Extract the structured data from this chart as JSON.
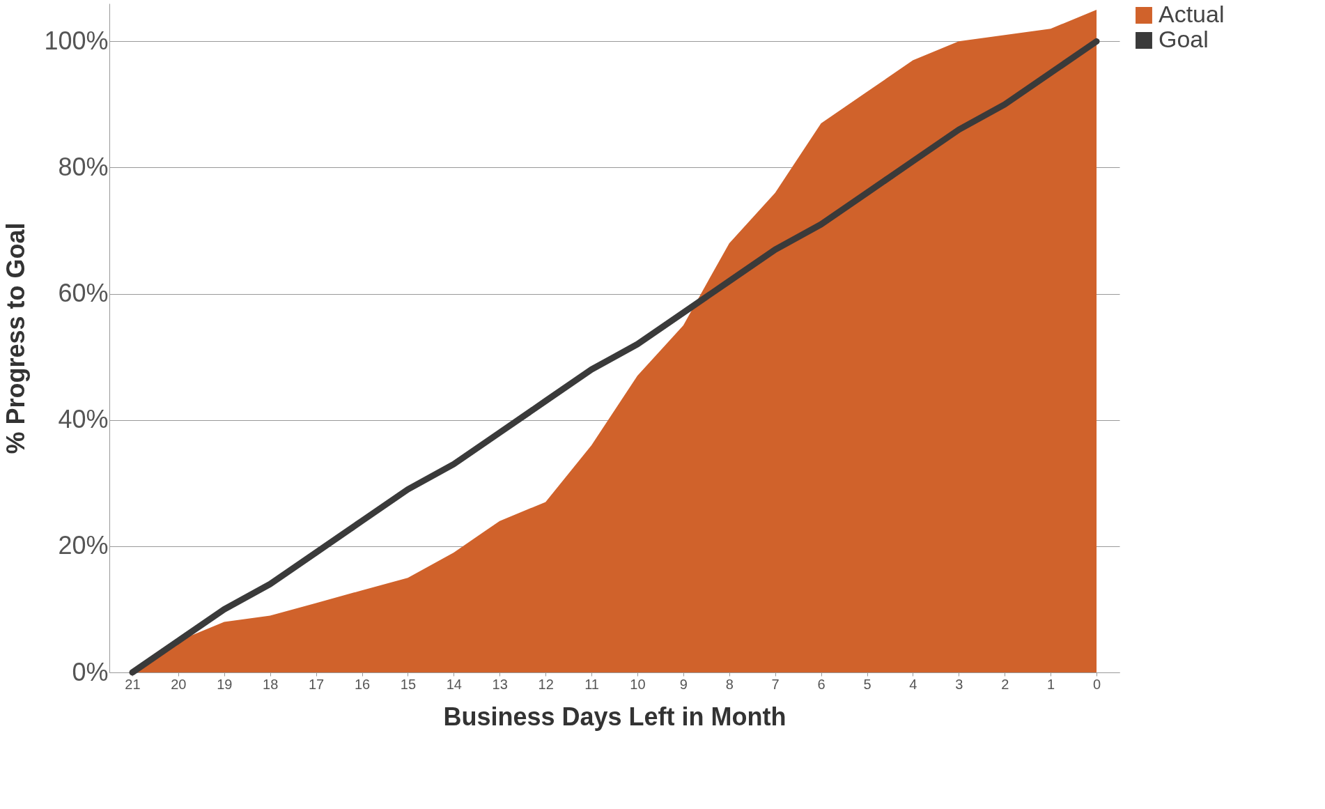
{
  "chart_data": {
    "type": "area",
    "xlabel": "Business Days Left in Month",
    "ylabel": "% Progress to Goal",
    "categories": [
      "21",
      "20",
      "19",
      "18",
      "17",
      "16",
      "15",
      "14",
      "13",
      "12",
      "11",
      "10",
      "9",
      "8",
      "7",
      "6",
      "5",
      "4",
      "3",
      "2",
      "1",
      "0"
    ],
    "series": [
      {
        "name": "Actual",
        "color": "#d0622b",
        "values": [
          0,
          5,
          8,
          9,
          11,
          13,
          15,
          19,
          24,
          27,
          36,
          47,
          55,
          68,
          76,
          87,
          92,
          97,
          100,
          101,
          102,
          105
        ]
      },
      {
        "name": "Goal",
        "type": "line",
        "color": "#3a3a3a",
        "values": [
          0,
          5,
          10,
          14,
          19,
          24,
          29,
          33,
          38,
          43,
          48,
          52,
          57,
          62,
          67,
          71,
          76,
          81,
          86,
          90,
          95,
          100
        ]
      }
    ],
    "ylim": [
      0,
      106
    ],
    "yticks": [
      {
        "value": 0,
        "label": "0%"
      },
      {
        "value": 20,
        "label": "20%"
      },
      {
        "value": 40,
        "label": "40%"
      },
      {
        "value": 60,
        "label": "60%"
      },
      {
        "value": 80,
        "label": "80%"
      },
      {
        "value": 100,
        "label": "100%"
      }
    ],
    "grid": "y",
    "legend": "right"
  }
}
